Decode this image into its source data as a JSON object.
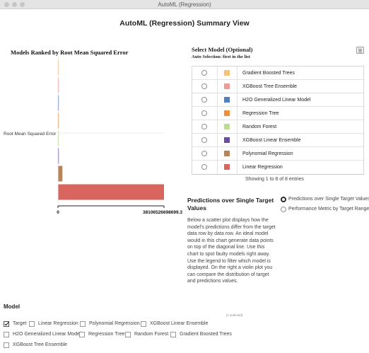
{
  "window": {
    "title": "AutoML (Regression)"
  },
  "page": {
    "title": "AutoML (Regression) Summary View"
  },
  "chart_data": {
    "type": "bar",
    "orientation": "horizontal",
    "title": "Models Ranked by Root Mean Squared Error",
    "ylabel": "Root Mean Squared Error",
    "xlabel": "",
    "tick_labels": [
      "0",
      "38106526698699.3"
    ],
    "xlim": [
      0,
      38106526698699.3
    ],
    "grid": false,
    "legend": "none",
    "bars": [
      {
        "model": "Gradient Boosted Trees",
        "value": 15000000,
        "color": "#f5c27a"
      },
      {
        "model": "XGBoost Tree Ensemble",
        "value": 18000000,
        "color": "#ee9b98"
      },
      {
        "model": "H2O Generalized Linear Model",
        "value": 20000000,
        "color": "#4f80c3"
      },
      {
        "model": "Regression Tree",
        "value": 22000000,
        "color": "#ef8f3c"
      },
      {
        "model": "Random Forest",
        "value": 25000000,
        "color": "#bcdc8f"
      },
      {
        "model": "XGBoost Linear Ensemble",
        "value": 30000000,
        "color": "#6a4d9e"
      },
      {
        "model": "Polynomial Regression",
        "value": 1600000000000,
        "color": "#b98358"
      },
      {
        "model": "Linear Regression",
        "value": 38106526698699.3,
        "color": "#d9655f"
      }
    ]
  },
  "selector": {
    "title": "Select Model (Optional)",
    "subtitle": "Auto Selection: first in the list",
    "rows": [
      {
        "name": "Gradient Boosted Trees",
        "color": "#f5c27a"
      },
      {
        "name": "XGBoost Tree Ensemble",
        "color": "#ee9b98"
      },
      {
        "name": "H2O Generalized Linear Model",
        "color": "#4f80c3"
      },
      {
        "name": "Regression Tree",
        "color": "#ef8f3c"
      },
      {
        "name": "Random Forest",
        "color": "#bcdc8f"
      },
      {
        "name": "XGBoost Linear Ensemble",
        "color": "#6a4d9e"
      },
      {
        "name": "Polynomial Regression",
        "color": "#b98358"
      },
      {
        "name": "Linear Regression",
        "color": "#d9655f"
      }
    ],
    "footer": "Showing 1 to 8 of 8 entries"
  },
  "predictions": {
    "title": "Predictions over Single Target Values",
    "description": "Below a scatter plot displays how the model's predictions differ from the target data row by data row. An ideal model would in this chart generate data points on top of the diagonal line. Use this chart to spot faulty models right away. Use the legend to filter which model is displayed. On the right a violin plot you can compare the distribution of target and predictions values.",
    "options": [
      {
        "label": "Predictions over Single Target Values",
        "selected": true
      },
      {
        "label": "Performance Metric by Target Range",
        "selected": false
      }
    ]
  },
  "model_filter": {
    "label": "Model",
    "selected_note": "[1 selected]",
    "options": [
      {
        "label": "Target",
        "checked": true
      },
      {
        "label": "Linear Regression",
        "checked": false
      },
      {
        "label": "Polynomial Regression",
        "checked": false
      },
      {
        "label": "XGBoost Linear Ensemble",
        "checked": false
      },
      {
        "label": "H2O Generalized Linear Model",
        "checked": false
      },
      {
        "label": "Regression Tree",
        "checked": false
      },
      {
        "label": "Random Forest",
        "checked": false
      },
      {
        "label": "Gradient Boosted Trees",
        "checked": false
      },
      {
        "label": "XGBoost Tree Ensemble",
        "checked": false
      }
    ]
  }
}
